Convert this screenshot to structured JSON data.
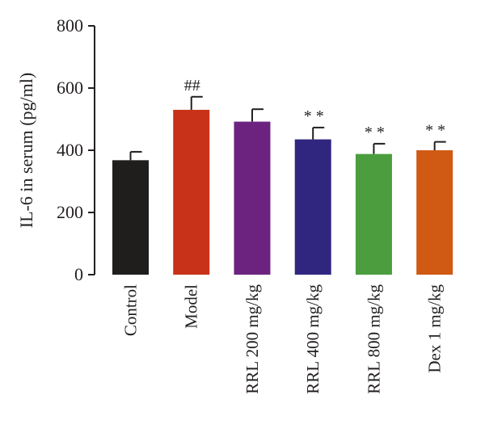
{
  "chart_data": {
    "type": "bar",
    "title": "",
    "xlabel": "",
    "ylabel": "IL-6 in serum (pg/ml)",
    "ylim": [
      0,
      800
    ],
    "yticks": [
      0,
      200,
      400,
      600,
      800
    ],
    "grid": false,
    "legend": "none",
    "categories": [
      "Control",
      "Model",
      "RRL 200 mg/kg",
      "RRL 400 mg/kg",
      "RRL 800 mg/kg",
      "Dex 1 mg/kg"
    ],
    "values": [
      368,
      530,
      492,
      435,
      388,
      400
    ],
    "errors": [
      27,
      42,
      40,
      38,
      33,
      27
    ],
    "annotations": [
      "",
      "##",
      "",
      "* *",
      "* *",
      "* *"
    ],
    "colors": [
      "#1f1e1c",
      "#c83219",
      "#6c2380",
      "#302680",
      "#4b9d3d",
      "#d05a14"
    ]
  }
}
